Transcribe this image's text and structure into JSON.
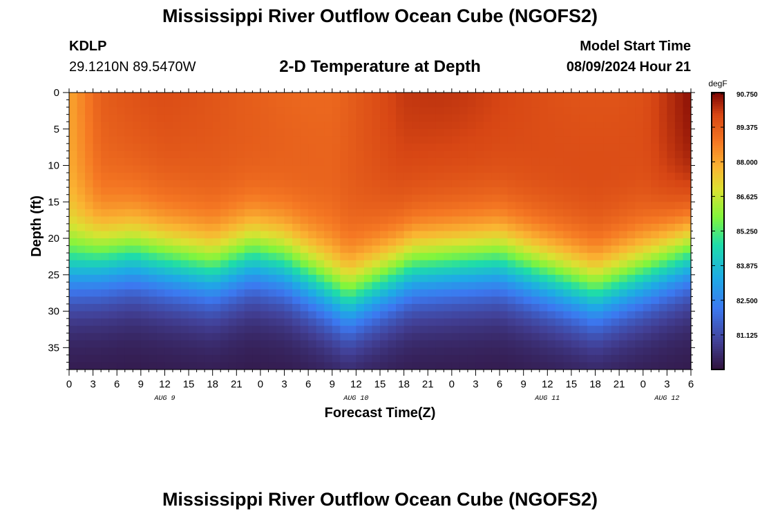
{
  "header": {
    "title": "Mississippi River Outflow Ocean Cube (NGOFS2)",
    "station": "KDLP",
    "coords": "29.1210N  89.5470W",
    "subtitle": "2-D Temperature at Depth",
    "model_label": "Model Start Time",
    "model_value": "08/09/2024 Hour 21"
  },
  "footer": {
    "title": "Mississippi River Outflow Ocean Cube (NGOFS2)"
  },
  "chart_data": {
    "type": "heatmap",
    "title": "2-D Temperature at Depth",
    "xlabel": "Forecast Time(Z)",
    "ylabel": "Depth (ft)",
    "x_ticks": [
      "0",
      "3",
      "6",
      "9",
      "12",
      "15",
      "18",
      "21",
      "0",
      "3",
      "6",
      "9",
      "12",
      "15",
      "18",
      "21",
      "0",
      "3",
      "6",
      "9",
      "12",
      "15",
      "18",
      "21",
      "0",
      "3",
      "6"
    ],
    "x_hours": [
      0,
      3,
      6,
      9,
      12,
      15,
      18,
      21,
      24,
      27,
      30,
      33,
      36,
      39,
      42,
      45,
      48,
      51,
      54,
      57,
      60,
      63,
      66,
      69,
      72,
      75,
      78
    ],
    "xlim": [
      0,
      78
    ],
    "date_labels": [
      {
        "label": "AUG 9",
        "hour": 12
      },
      {
        "label": "AUG 10",
        "hour": 36
      },
      {
        "label": "AUG 11",
        "hour": 60
      },
      {
        "label": "AUG 12",
        "hour": 75
      }
    ],
    "y_ticks": [
      "0",
      "5",
      "10",
      "15",
      "20",
      "25",
      "30",
      "35"
    ],
    "y_values": [
      0,
      5,
      10,
      15,
      20,
      25,
      30,
      35
    ],
    "ylim": [
      0,
      38
    ],
    "colorbar": {
      "unit": "degF",
      "min": 79.75,
      "max": 90.75,
      "tick_labels": [
        "90.750",
        "89.375",
        "88.000",
        "86.625",
        "85.250",
        "83.875",
        "82.500",
        "81.125"
      ],
      "tick_values": [
        90.75,
        89.375,
        88.0,
        86.625,
        85.25,
        83.875,
        82.5,
        81.125
      ]
    },
    "field": {
      "surface_temp_hours": [
        0,
        4,
        12,
        24,
        33,
        42,
        54,
        72,
        78
      ],
      "surface_temp_values": [
        88.0,
        89.2,
        89.5,
        89.5,
        89.3,
        89.9,
        89.8,
        89.8,
        90.5
      ],
      "thermocline_hours": [
        0,
        8,
        18,
        23,
        27,
        35,
        43,
        54,
        66,
        72,
        78
      ],
      "thermocline_depth_ft": [
        24.0,
        22.5,
        24.5,
        22.5,
        23.5,
        28.5,
        24.0,
        23.0,
        27.5,
        25.0,
        22.0
      ],
      "bottom_temp": 79.9
    }
  }
}
